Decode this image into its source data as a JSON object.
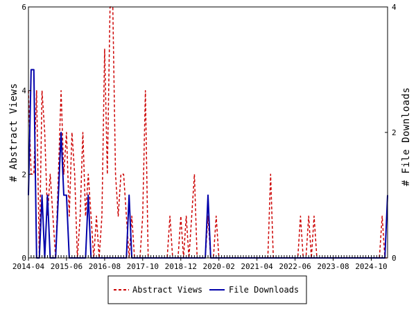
{
  "chart_data": {
    "type": "line",
    "x_tick_labels": [
      "2014-04",
      "2015-06",
      "2016-08",
      "2017-10",
      "2018-12",
      "2020-02",
      "2021-04",
      "2022-06",
      "2023-08",
      "2024-10"
    ],
    "ylabel_left": "# Abstract Views",
    "ylabel_right": "# File Downloads",
    "ylim_left": [
      0,
      6
    ],
    "ylim_right": [
      0,
      4
    ],
    "left_ticks": [
      0,
      2,
      4,
      6
    ],
    "right_ticks": [
      0,
      2,
      4
    ],
    "x_start": "2014-04",
    "x_end": "2025-04",
    "grid": false,
    "legend_position": "bottom",
    "series": [
      {
        "name": "Abstract Views",
        "axis": "left",
        "color": "#cc0000",
        "style": "dashed",
        "points": [
          [
            "2014-04",
            4
          ],
          [
            "2014-05",
            2
          ],
          [
            "2014-06",
            2
          ],
          [
            "2014-07",
            4
          ],
          [
            "2014-08",
            0
          ],
          [
            "2014-09",
            4
          ],
          [
            "2014-10",
            3
          ],
          [
            "2014-11",
            1
          ],
          [
            "2014-12",
            2
          ],
          [
            "2015-01",
            1
          ],
          [
            "2015-02",
            0
          ],
          [
            "2015-03",
            2
          ],
          [
            "2015-04",
            4
          ],
          [
            "2015-05",
            2
          ],
          [
            "2015-06",
            3
          ],
          [
            "2015-07",
            1
          ],
          [
            "2015-08",
            3
          ],
          [
            "2015-09",
            2
          ],
          [
            "2015-10",
            0
          ],
          [
            "2015-11",
            1
          ],
          [
            "2015-12",
            3
          ],
          [
            "2016-01",
            1
          ],
          [
            "2016-02",
            2
          ],
          [
            "2016-03",
            1
          ],
          [
            "2016-04",
            0
          ],
          [
            "2016-05",
            1
          ],
          [
            "2016-06",
            0
          ],
          [
            "2016-07",
            1
          ],
          [
            "2016-08",
            5
          ],
          [
            "2016-09",
            2
          ],
          [
            "2016-10",
            6
          ],
          [
            "2016-11",
            6
          ],
          [
            "2016-12",
            2
          ],
          [
            "2017-01",
            1
          ],
          [
            "2017-02",
            2
          ],
          [
            "2017-03",
            2
          ],
          [
            "2017-04",
            1
          ],
          [
            "2017-05",
            0
          ],
          [
            "2017-06",
            1
          ],
          [
            "2017-07",
            0
          ],
          [
            "2017-08",
            0
          ],
          [
            "2017-09",
            0
          ],
          [
            "2017-10",
            1
          ],
          [
            "2017-11",
            4
          ],
          [
            "2017-12",
            0
          ],
          [
            "2018-01",
            0
          ],
          [
            "2018-02",
            0
          ],
          [
            "2018-03",
            0
          ],
          [
            "2018-04",
            0
          ],
          [
            "2018-05",
            0
          ],
          [
            "2018-06",
            0
          ],
          [
            "2018-07",
            0
          ],
          [
            "2018-08",
            1
          ],
          [
            "2018-09",
            0
          ],
          [
            "2018-10",
            0
          ],
          [
            "2018-11",
            0
          ],
          [
            "2018-12",
            1
          ],
          [
            "2019-01",
            0
          ],
          [
            "2019-02",
            1
          ],
          [
            "2019-03",
            0
          ],
          [
            "2019-04",
            1
          ],
          [
            "2019-05",
            2
          ],
          [
            "2019-06",
            0
          ],
          [
            "2019-07",
            0
          ],
          [
            "2019-08",
            0
          ],
          [
            "2019-09",
            0
          ],
          [
            "2019-10",
            1
          ],
          [
            "2019-11",
            0
          ],
          [
            "2019-12",
            0
          ],
          [
            "2020-01",
            1
          ],
          [
            "2020-02",
            0
          ],
          [
            "2020-03",
            0
          ],
          [
            "2020-04",
            0
          ],
          [
            "2020-05",
            0
          ],
          [
            "2020-06",
            0
          ],
          [
            "2020-07",
            0
          ],
          [
            "2020-08",
            0
          ],
          [
            "2020-09",
            0
          ],
          [
            "2020-10",
            0
          ],
          [
            "2020-11",
            0
          ],
          [
            "2020-12",
            0
          ],
          [
            "2021-01",
            0
          ],
          [
            "2021-02",
            0
          ],
          [
            "2021-03",
            0
          ],
          [
            "2021-04",
            0
          ],
          [
            "2021-05",
            0
          ],
          [
            "2021-06",
            0
          ],
          [
            "2021-07",
            0
          ],
          [
            "2021-08",
            0
          ],
          [
            "2021-09",
            2
          ],
          [
            "2021-10",
            0
          ],
          [
            "2021-11",
            0
          ],
          [
            "2021-12",
            0
          ],
          [
            "2022-01",
            0
          ],
          [
            "2022-02",
            0
          ],
          [
            "2022-03",
            0
          ],
          [
            "2022-04",
            0
          ],
          [
            "2022-05",
            0
          ],
          [
            "2022-06",
            0
          ],
          [
            "2022-07",
            0
          ],
          [
            "2022-08",
            1
          ],
          [
            "2022-09",
            0
          ],
          [
            "2022-10",
            0
          ],
          [
            "2022-11",
            1
          ],
          [
            "2022-12",
            0
          ],
          [
            "2023-01",
            1
          ],
          [
            "2023-02",
            0
          ],
          [
            "2023-03",
            0
          ],
          [
            "2023-04",
            0
          ],
          [
            "2023-05",
            0
          ],
          [
            "2023-06",
            0
          ],
          [
            "2023-07",
            0
          ],
          [
            "2023-08",
            0
          ],
          [
            "2023-09",
            0
          ],
          [
            "2023-10",
            0
          ],
          [
            "2023-11",
            0
          ],
          [
            "2023-12",
            0
          ],
          [
            "2024-01",
            0
          ],
          [
            "2024-02",
            0
          ],
          [
            "2024-03",
            0
          ],
          [
            "2024-04",
            0
          ],
          [
            "2024-05",
            0
          ],
          [
            "2024-06",
            0
          ],
          [
            "2024-07",
            0
          ],
          [
            "2024-08",
            0
          ],
          [
            "2024-09",
            0
          ],
          [
            "2024-10",
            0
          ],
          [
            "2024-11",
            0
          ],
          [
            "2024-12",
            0
          ],
          [
            "2025-01",
            0
          ],
          [
            "2025-02",
            1
          ],
          [
            "2025-03",
            0
          ],
          [
            "2025-04",
            0
          ]
        ]
      },
      {
        "name": "File Downloads",
        "axis": "right",
        "color": "#0000aa",
        "style": "solid",
        "points": [
          [
            "2014-04",
            1
          ],
          [
            "2014-05",
            3
          ],
          [
            "2014-06",
            3
          ],
          [
            "2014-07",
            0
          ],
          [
            "2014-08",
            0
          ],
          [
            "2014-09",
            1
          ],
          [
            "2014-10",
            0
          ],
          [
            "2014-11",
            1
          ],
          [
            "2014-12",
            0
          ],
          [
            "2015-01",
            0
          ],
          [
            "2015-02",
            0
          ],
          [
            "2015-03",
            1
          ],
          [
            "2015-04",
            2
          ],
          [
            "2015-05",
            1
          ],
          [
            "2015-06",
            1
          ],
          [
            "2015-07",
            0
          ],
          [
            "2015-08",
            0
          ],
          [
            "2015-09",
            0
          ],
          [
            "2015-10",
            0
          ],
          [
            "2015-11",
            0
          ],
          [
            "2015-12",
            0
          ],
          [
            "2016-01",
            0
          ],
          [
            "2016-02",
            1
          ],
          [
            "2016-03",
            0
          ],
          [
            "2016-04",
            0
          ],
          [
            "2016-05",
            0
          ],
          [
            "2016-06",
            0
          ],
          [
            "2016-07",
            0
          ],
          [
            "2016-08",
            0
          ],
          [
            "2016-09",
            0
          ],
          [
            "2016-10",
            0
          ],
          [
            "2016-11",
            0
          ],
          [
            "2016-12",
            0
          ],
          [
            "2017-01",
            0
          ],
          [
            "2017-02",
            0
          ],
          [
            "2017-03",
            0
          ],
          [
            "2017-04",
            0
          ],
          [
            "2017-05",
            1
          ],
          [
            "2017-06",
            0
          ],
          [
            "2017-07",
            0
          ],
          [
            "2017-08",
            0
          ],
          [
            "2017-09",
            0
          ],
          [
            "2017-10",
            0
          ],
          [
            "2017-11",
            0
          ],
          [
            "2017-12",
            0
          ],
          [
            "2018-01",
            0
          ],
          [
            "2018-02",
            0
          ],
          [
            "2018-03",
            0
          ],
          [
            "2018-04",
            0
          ],
          [
            "2018-05",
            0
          ],
          [
            "2018-06",
            0
          ],
          [
            "2018-07",
            0
          ],
          [
            "2018-08",
            0
          ],
          [
            "2018-09",
            0
          ],
          [
            "2018-10",
            0
          ],
          [
            "2018-11",
            0
          ],
          [
            "2018-12",
            0
          ],
          [
            "2019-01",
            0
          ],
          [
            "2019-02",
            0
          ],
          [
            "2019-03",
            0
          ],
          [
            "2019-04",
            0
          ],
          [
            "2019-05",
            0
          ],
          [
            "2019-06",
            0
          ],
          [
            "2019-07",
            0
          ],
          [
            "2019-08",
            0
          ],
          [
            "2019-09",
            0
          ],
          [
            "2019-10",
            1
          ],
          [
            "2019-11",
            0
          ],
          [
            "2019-12",
            0
          ],
          [
            "2020-01",
            0
          ],
          [
            "2020-02",
            0
          ],
          [
            "2020-03",
            0
          ],
          [
            "2020-04",
            0
          ],
          [
            "2020-05",
            0
          ],
          [
            "2020-06",
            0
          ],
          [
            "2020-07",
            0
          ],
          [
            "2020-08",
            0
          ],
          [
            "2020-09",
            0
          ],
          [
            "2020-10",
            0
          ],
          [
            "2020-11",
            0
          ],
          [
            "2020-12",
            0
          ],
          [
            "2021-01",
            0
          ],
          [
            "2021-02",
            0
          ],
          [
            "2021-03",
            0
          ],
          [
            "2021-04",
            0
          ],
          [
            "2021-05",
            0
          ],
          [
            "2021-06",
            0
          ],
          [
            "2021-07",
            0
          ],
          [
            "2021-08",
            0
          ],
          [
            "2021-09",
            0
          ],
          [
            "2021-10",
            0
          ],
          [
            "2021-11",
            0
          ],
          [
            "2021-12",
            0
          ],
          [
            "2022-01",
            0
          ],
          [
            "2022-02",
            0
          ],
          [
            "2022-03",
            0
          ],
          [
            "2022-04",
            0
          ],
          [
            "2022-05",
            0
          ],
          [
            "2022-06",
            0
          ],
          [
            "2022-07",
            0
          ],
          [
            "2022-08",
            0
          ],
          [
            "2022-09",
            0
          ],
          [
            "2022-10",
            0
          ],
          [
            "2022-11",
            0
          ],
          [
            "2022-12",
            0
          ],
          [
            "2023-01",
            0
          ],
          [
            "2023-02",
            0
          ],
          [
            "2023-03",
            0
          ],
          [
            "2023-04",
            0
          ],
          [
            "2023-05",
            0
          ],
          [
            "2023-06",
            0
          ],
          [
            "2023-07",
            0
          ],
          [
            "2023-08",
            0
          ],
          [
            "2023-09",
            0
          ],
          [
            "2023-10",
            0
          ],
          [
            "2023-11",
            0
          ],
          [
            "2023-12",
            0
          ],
          [
            "2024-01",
            0
          ],
          [
            "2024-02",
            0
          ],
          [
            "2024-03",
            0
          ],
          [
            "2024-04",
            0
          ],
          [
            "2024-05",
            0
          ],
          [
            "2024-06",
            0
          ],
          [
            "2024-07",
            0
          ],
          [
            "2024-08",
            0
          ],
          [
            "2024-09",
            0
          ],
          [
            "2024-10",
            0
          ],
          [
            "2024-11",
            0
          ],
          [
            "2024-12",
            0
          ],
          [
            "2025-01",
            0
          ],
          [
            "2025-02",
            0
          ],
          [
            "2025-03",
            0
          ],
          [
            "2025-04",
            1
          ]
        ]
      }
    ]
  }
}
